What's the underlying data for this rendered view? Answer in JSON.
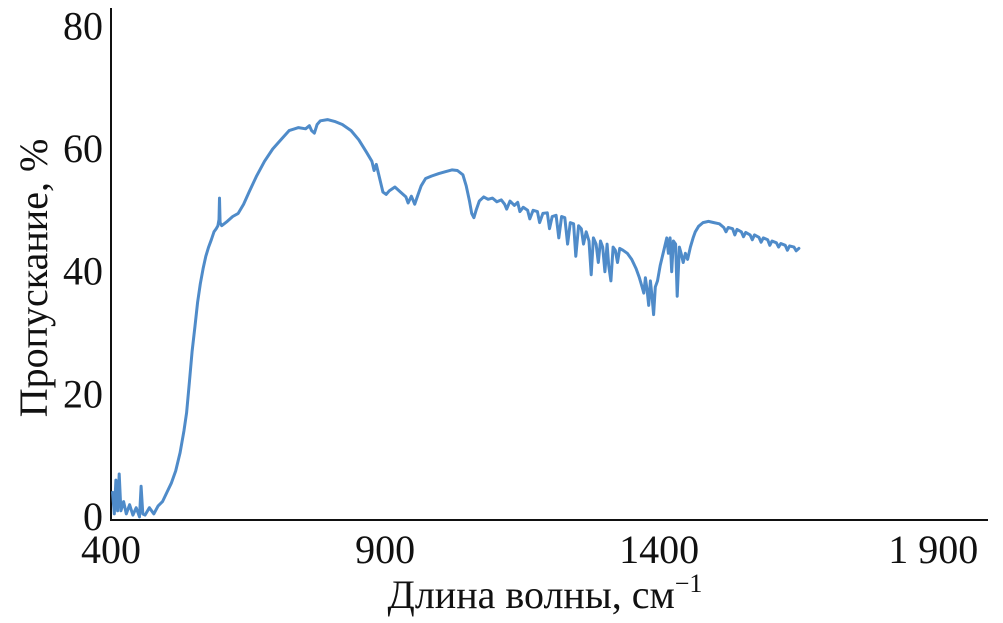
{
  "chart_data": {
    "type": "line",
    "xlabel": "Длина волны, см",
    "xlabel_superscript": "−1",
    "ylabel": "Пропускание, %",
    "xlim": [
      400,
      2000
    ],
    "ylim": [
      -0.5,
      83
    ],
    "x_ticks": [
      400,
      900,
      1400,
      1900
    ],
    "x_tick_labels": [
      "400",
      "900",
      "1400",
      "1 900"
    ],
    "y_ticks": [
      0,
      20,
      40,
      60,
      80
    ],
    "y_tick_labels": [
      "0",
      "20",
      "40",
      "60",
      "80"
    ],
    "grid": false,
    "line_color": "#4f8bc9",
    "axis_color": "#111111",
    "series": [
      {
        "values": [
          [
            403,
            4
          ],
          [
            406,
            0.5
          ],
          [
            409,
            6
          ],
          [
            412,
            1
          ],
          [
            415,
            7
          ],
          [
            418,
            1
          ],
          [
            423,
            2.5
          ],
          [
            428,
            0.5
          ],
          [
            434,
            2
          ],
          [
            440,
            0.3
          ],
          [
            446,
            1.5
          ],
          [
            452,
            0
          ],
          [
            455,
            5
          ],
          [
            458,
            0.5
          ],
          [
            462,
            0.3
          ],
          [
            470,
            1.5
          ],
          [
            478,
            0.5
          ],
          [
            486,
            1.8
          ],
          [
            494,
            2.5
          ],
          [
            502,
            4
          ],
          [
            510,
            5.5
          ],
          [
            518,
            7.5
          ],
          [
            526,
            10.5
          ],
          [
            533,
            14
          ],
          [
            538,
            17
          ],
          [
            543,
            22
          ],
          [
            548,
            27
          ],
          [
            553,
            31
          ],
          [
            558,
            35
          ],
          [
            563,
            38
          ],
          [
            568,
            40.5
          ],
          [
            573,
            42.5
          ],
          [
            578,
            44
          ],
          [
            583,
            45.2
          ],
          [
            588,
            46.5
          ],
          [
            592,
            47
          ],
          [
            595,
            47.5
          ],
          [
            597,
            48.5
          ],
          [
            598,
            52
          ],
          [
            599,
            48
          ],
          [
            602,
            47.5
          ],
          [
            612,
            48.2
          ],
          [
            622,
            49
          ],
          [
            632,
            49.5
          ],
          [
            642,
            51
          ],
          [
            652,
            53
          ],
          [
            665,
            55.5
          ],
          [
            680,
            58
          ],
          [
            695,
            60
          ],
          [
            710,
            61.5
          ],
          [
            725,
            63
          ],
          [
            742,
            63.5
          ],
          [
            755,
            63.3
          ],
          [
            762,
            63.8
          ],
          [
            766,
            63
          ],
          [
            771,
            62.6
          ],
          [
            776,
            64
          ],
          [
            782,
            64.6
          ],
          [
            795,
            64.8
          ],
          [
            808,
            64.5
          ],
          [
            822,
            64
          ],
          [
            838,
            63
          ],
          [
            852,
            61.5
          ],
          [
            866,
            59.5
          ],
          [
            876,
            58
          ],
          [
            880,
            56.5
          ],
          [
            884,
            57.5
          ],
          [
            888,
            56
          ],
          [
            892,
            54.5
          ],
          [
            896,
            53
          ],
          [
            902,
            52.6
          ],
          [
            908,
            53.2
          ],
          [
            918,
            53.8
          ],
          [
            928,
            53
          ],
          [
            938,
            52.2
          ],
          [
            942,
            51.2
          ],
          [
            948,
            52.3
          ],
          [
            954,
            51
          ],
          [
            960,
            52.5
          ],
          [
            966,
            54
          ],
          [
            974,
            55.2
          ],
          [
            985,
            55.6
          ],
          [
            998,
            56
          ],
          [
            1010,
            56.3
          ],
          [
            1022,
            56.6
          ],
          [
            1032,
            56.5
          ],
          [
            1042,
            55.8
          ],
          [
            1048,
            54
          ],
          [
            1054,
            51.5
          ],
          [
            1058,
            49.5
          ],
          [
            1062,
            48.8
          ],
          [
            1066,
            50
          ],
          [
            1072,
            51.5
          ],
          [
            1080,
            52.2
          ],
          [
            1088,
            51.8
          ],
          [
            1096,
            52
          ],
          [
            1104,
            51.4
          ],
          [
            1112,
            51.7
          ],
          [
            1118,
            51
          ],
          [
            1122,
            50.2
          ],
          [
            1128,
            51.5
          ],
          [
            1136,
            50.8
          ],
          [
            1142,
            51.3
          ],
          [
            1146,
            49.8
          ],
          [
            1152,
            50.5
          ],
          [
            1160,
            50
          ],
          [
            1164,
            48.6
          ],
          [
            1170,
            50
          ],
          [
            1178,
            49.8
          ],
          [
            1182,
            48
          ],
          [
            1188,
            49.5
          ],
          [
            1196,
            49.6
          ],
          [
            1200,
            47
          ],
          [
            1205,
            49
          ],
          [
            1212,
            49.2
          ],
          [
            1217,
            45.5
          ],
          [
            1222,
            49
          ],
          [
            1228,
            48.8
          ],
          [
            1233,
            44.5
          ],
          [
            1238,
            48
          ],
          [
            1244,
            47.8
          ],
          [
            1248,
            42.5
          ],
          [
            1253,
            47.5
          ],
          [
            1258,
            47
          ],
          [
            1262,
            44.5
          ],
          [
            1267,
            46.5
          ],
          [
            1272,
            45
          ],
          [
            1276,
            39.5
          ],
          [
            1280,
            45.5
          ],
          [
            1285,
            44.5
          ],
          [
            1289,
            41.5
          ],
          [
            1293,
            45
          ],
          [
            1297,
            44
          ],
          [
            1301,
            40
          ],
          [
            1305,
            44.5
          ],
          [
            1308,
            41
          ],
          [
            1312,
            38.5
          ],
          [
            1316,
            44
          ],
          [
            1320,
            43.5
          ],
          [
            1324,
            41.5
          ],
          [
            1328,
            43.8
          ],
          [
            1334,
            43.5
          ],
          [
            1342,
            43
          ],
          [
            1350,
            42
          ],
          [
            1358,
            40.5
          ],
          [
            1364,
            39
          ],
          [
            1369,
            37.5
          ],
          [
            1372,
            36.5
          ],
          [
            1375,
            39
          ],
          [
            1378,
            37
          ],
          [
            1381,
            34.5
          ],
          [
            1384,
            38.5
          ],
          [
            1387,
            36
          ],
          [
            1390,
            33
          ],
          [
            1393,
            37.5
          ],
          [
            1397,
            38.5
          ],
          [
            1402,
            41
          ],
          [
            1406,
            42.5
          ],
          [
            1410,
            44
          ],
          [
            1414,
            45.5
          ],
          [
            1417,
            43
          ],
          [
            1420,
            45.5
          ],
          [
            1423,
            40
          ],
          [
            1426,
            45
          ],
          [
            1430,
            44.5
          ],
          [
            1433,
            36
          ],
          [
            1437,
            44
          ],
          [
            1440,
            43
          ],
          [
            1444,
            41.5
          ],
          [
            1448,
            43
          ],
          [
            1452,
            42
          ],
          [
            1457,
            44
          ],
          [
            1462,
            45.5
          ],
          [
            1466,
            46.5
          ],
          [
            1472,
            47.4
          ],
          [
            1480,
            48
          ],
          [
            1490,
            48.2
          ],
          [
            1500,
            48
          ],
          [
            1510,
            47.8
          ],
          [
            1518,
            47.2
          ],
          [
            1522,
            46.5
          ],
          [
            1526,
            47.2
          ],
          [
            1534,
            47
          ],
          [
            1538,
            46
          ],
          [
            1542,
            46.9
          ],
          [
            1550,
            46.5
          ],
          [
            1554,
            45.7
          ],
          [
            1558,
            46.4
          ],
          [
            1566,
            46
          ],
          [
            1570,
            45.2
          ],
          [
            1574,
            46
          ],
          [
            1582,
            45.6
          ],
          [
            1586,
            44.8
          ],
          [
            1590,
            45.5
          ],
          [
            1598,
            45.2
          ],
          [
            1602,
            44.3
          ],
          [
            1606,
            45
          ],
          [
            1614,
            44.7
          ],
          [
            1618,
            44
          ],
          [
            1622,
            44.6
          ],
          [
            1630,
            44.3
          ],
          [
            1634,
            43.5
          ],
          [
            1638,
            44.2
          ],
          [
            1646,
            44
          ],
          [
            1650,
            43.4
          ],
          [
            1655,
            43.8
          ]
        ]
      }
    ]
  }
}
